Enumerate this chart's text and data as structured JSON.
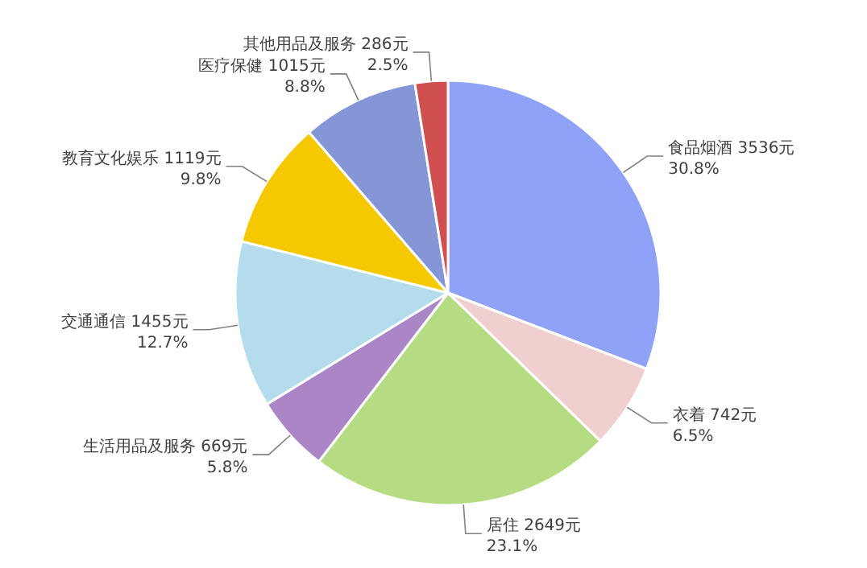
{
  "chart_data": {
    "type": "pie",
    "categories": [
      "食品烟酒",
      "衣着",
      "居住",
      "生活用品及服务",
      "交通通信",
      "教育文化娱乐",
      "医疗保健",
      "其他用品及服务"
    ],
    "values": [
      3536,
      742,
      2649,
      669,
      1455,
      1119,
      1015,
      286
    ],
    "value_labels": [
      "3536元\n30.8%",
      "742元\n6.5%",
      "2649元\n23.1%",
      "669元\n5.8%",
      "1455元\n12.7%",
      "1119元\n9.8%",
      "1015元\n8.8%",
      "286元\n2.5%"
    ],
    "colors": [
      "#8fa2f8",
      "#f0cfcf",
      "#b5dc82",
      "#ab86c6",
      "#b4dcec",
      "#f5c800",
      "#8496d6",
      "#d05050"
    ]
  }
}
